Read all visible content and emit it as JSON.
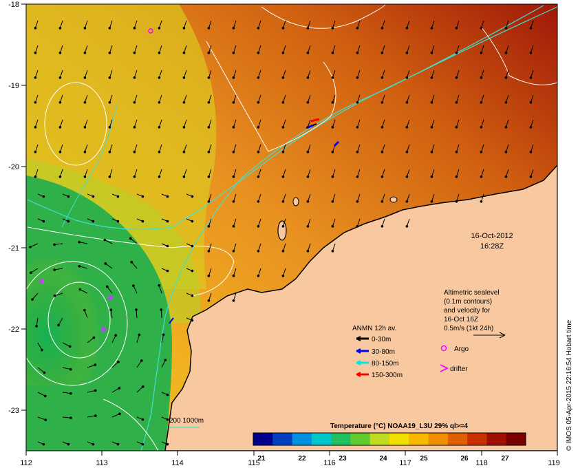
{
  "map": {
    "lon_ticks": [
      "112",
      "113",
      "114",
      "115",
      "116",
      "117",
      "118",
      "119"
    ],
    "lat_ticks": [
      "-18",
      "-19",
      "-20",
      "-21",
      "-22",
      "-23"
    ],
    "lon_range": [
      112,
      119
    ],
    "lat_range": [
      -23.5,
      -18
    ]
  },
  "timestamp": {
    "date": "16-Oct-2012",
    "time": "16:28Z"
  },
  "sealevel_note": {
    "line1": "Altimetric sealevel",
    "line2": "(0.1m contours)",
    "line3": "and velocity for",
    "line4": "16-Oct 16Z",
    "line5": "0.5m/s (1kt 24h)"
  },
  "legend": {
    "title": "ANMN 12h av.",
    "items": [
      {
        "label": "0-30m",
        "color": "#000000"
      },
      {
        "label": "30-80m",
        "color": "#0000ff"
      },
      {
        "label": "80-150m",
        "color": "#00e5e5"
      },
      {
        "label": "150-300m",
        "color": "#ff0000"
      }
    ],
    "argo_label": "Argo",
    "argo_color": "#ff00ff",
    "drifter_label": "drifter",
    "drifter_color": "#ff00ff"
  },
  "depth_legend": {
    "label": "200  1000m",
    "color": "#40e0d0"
  },
  "colorbar": {
    "title": "Temperature (°C) NOAA19_L3U 29% ql>=4",
    "labels": [
      "21",
      "22",
      "23",
      "24",
      "25",
      "26",
      "27"
    ],
    "colors": [
      "#00008b",
      "#0040c0",
      "#0090e0",
      "#00c8c8",
      "#20c060",
      "#60cc30",
      "#c0dc20",
      "#f0e000",
      "#f8b800",
      "#f09000",
      "#e06000",
      "#c83000",
      "#a01000",
      "#7a0000"
    ]
  },
  "credit": "© IMOS 05-Apr-2015 22:16:54 Hobart time",
  "colors": {
    "land": "#f8c8a0",
    "contour": "#ffffff",
    "isobath": "#40e0d0",
    "no_data": "#000000"
  }
}
